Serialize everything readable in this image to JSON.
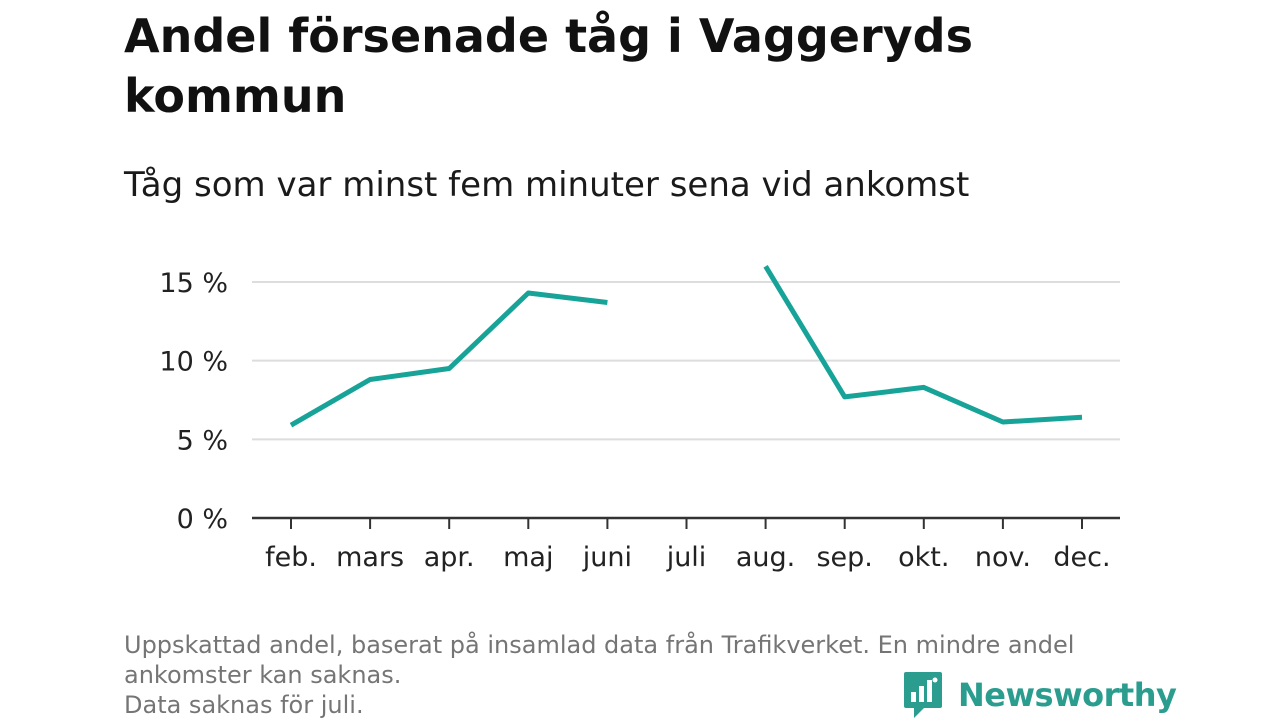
{
  "header": {
    "title": "Andel försenade tåg i Vaggeryds kommun",
    "subtitle": "Tåg som var minst fem minuter sena vid ankomst"
  },
  "footer": {
    "note_line1": "Uppskattad andel, baserat på insamlad data från Trafikverket. En mindre andel",
    "note_line2": "ankomster kan saknas.",
    "note_line3": "Data saknas för juli.",
    "brand": "Newsworthy"
  },
  "colors": {
    "line": "#17a398",
    "grid": "#dddddd",
    "axis": "#333333",
    "brand": "#2a9d8f"
  },
  "chart_data": {
    "type": "line",
    "categories": [
      "feb.",
      "mars",
      "apr.",
      "maj",
      "juni",
      "juli",
      "aug.",
      "sep.",
      "okt.",
      "nov.",
      "dec."
    ],
    "series": [
      {
        "values": [
          5.9,
          8.8,
          9.5,
          14.3,
          13.7,
          null,
          16.0,
          7.7,
          8.3,
          6.1,
          6.4
        ]
      }
    ],
    "ylim": [
      0,
      15
    ],
    "yticks": [
      0,
      5,
      10,
      15
    ],
    "ytick_labels": [
      "0 %",
      "5 %",
      "10 %",
      "15 %"
    ],
    "grid": true,
    "legend": "none"
  }
}
